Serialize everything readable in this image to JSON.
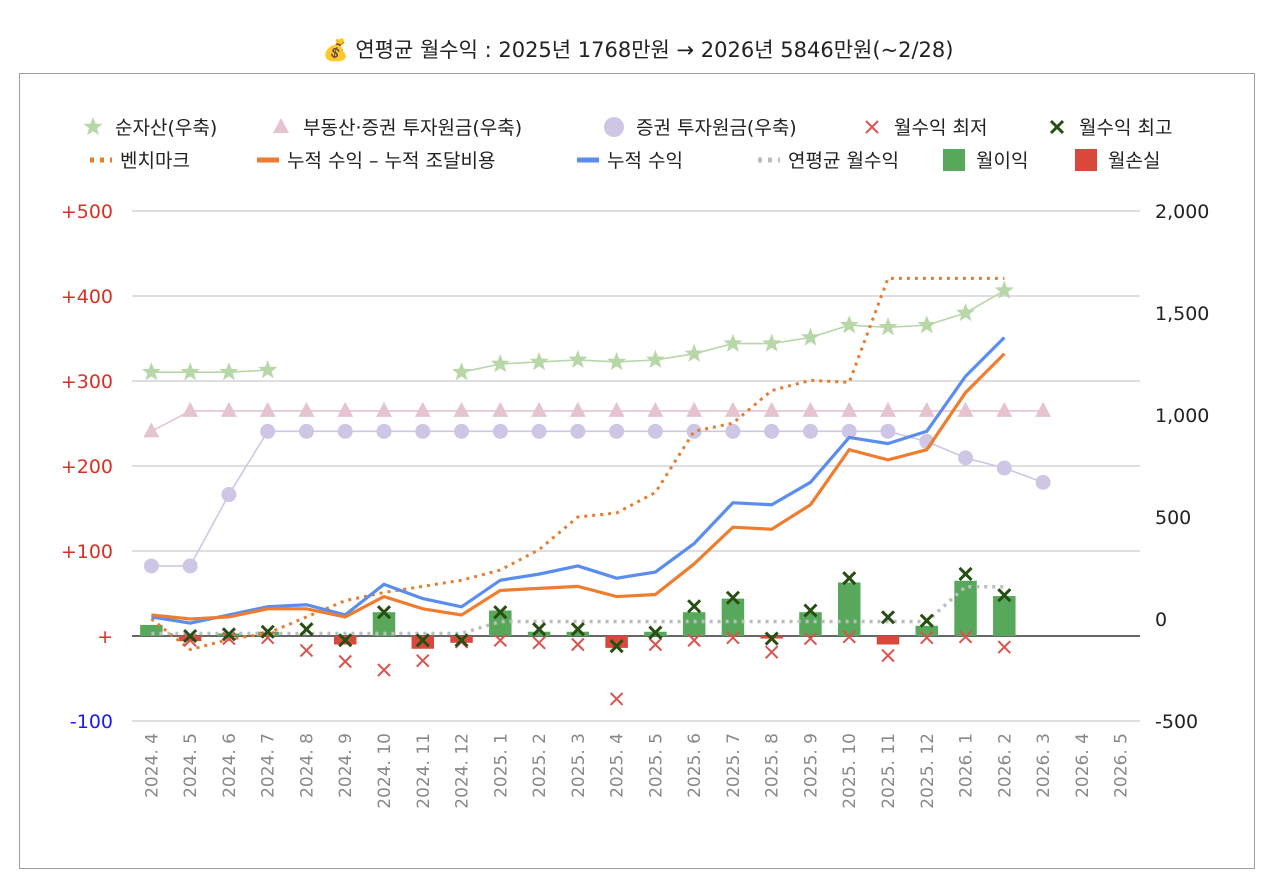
{
  "title": "💰 연평균 월수익 : 2025년 1768만원 → 2026년 5846만원(~2/28)",
  "chart_data": {
    "type": "combo",
    "categories": [
      "2024. 4",
      "2024. 5",
      "2024. 6",
      "2024. 7",
      "2024. 8",
      "2024. 9",
      "2024. 10",
      "2024. 11",
      "2024. 12",
      "2025. 1",
      "2025. 2",
      "2025. 3",
      "2025. 4",
      "2025. 5",
      "2025. 6",
      "2025. 7",
      "2025. 8",
      "2025. 9",
      "2025. 10",
      "2025. 11",
      "2025. 12",
      "2026. 1",
      "2026. 2",
      "2026. 3",
      "2026. 4",
      "2026. 5"
    ],
    "left_axis": {
      "ylim": [
        -100,
        500
      ],
      "ticks": [
        {
          "v": 500,
          "label": "+500",
          "color": "#d93025"
        },
        {
          "v": 400,
          "label": "+400",
          "color": "#d93025"
        },
        {
          "v": 300,
          "label": "+300",
          "color": "#d93025"
        },
        {
          "v": 200,
          "label": "+200",
          "color": "#d93025"
        },
        {
          "v": 100,
          "label": "+100",
          "color": "#d93025"
        },
        {
          "v": 0,
          "label": "+",
          "color": "#d93025"
        },
        {
          "v": -100,
          "label": "-100",
          "color": "#1a1aff"
        }
      ]
    },
    "right_axis": {
      "ylim": [
        -500,
        2000
      ],
      "ticks": [
        {
          "v": 2000,
          "label": "2,000"
        },
        {
          "v": 1500,
          "label": "1,500"
        },
        {
          "v": 1000,
          "label": "1,000"
        },
        {
          "v": 500,
          "label": "500"
        },
        {
          "v": 0,
          "label": "0"
        },
        {
          "v": -500,
          "label": "-500"
        }
      ]
    },
    "legend": [
      {
        "name": "순자산(우축)",
        "symbol": "star",
        "color": "#b7d7a8"
      },
      {
        "name": "부동산·증권 투자원금(우축)",
        "symbol": "triangle",
        "color": "#e6c3d0"
      },
      {
        "name": "증권 투자원금(우축)",
        "symbol": "circle",
        "color": "#cfc6e6"
      },
      {
        "name": "월수익 최저",
        "symbol": "x",
        "color": "#d9534f"
      },
      {
        "name": "월수익 최고",
        "symbol": "x",
        "color": "#274e13"
      },
      {
        "name": "벤치마크",
        "symbol": "dotted",
        "color": "#e67c30"
      },
      {
        "name": "누적 수익 – 누적 조달비용",
        "symbol": "line",
        "color": "#ef7d2f"
      },
      {
        "name": "누적 수익",
        "symbol": "line",
        "color": "#5b8def"
      },
      {
        "name": "연평균 월수익",
        "symbol": "dotted",
        "color": "#bdbdbd"
      },
      {
        "name": "월이익",
        "symbol": "box",
        "color": "#57a85a"
      },
      {
        "name": "월손실",
        "symbol": "box",
        "color": "#d9483b"
      }
    ],
    "series": [
      {
        "name": "월이익",
        "axis": "left",
        "type": "bar",
        "color": "#57a85a",
        "values": [
          13,
          0,
          3,
          5,
          0,
          0,
          28,
          0,
          0,
          30,
          5,
          5,
          0,
          5,
          28,
          44,
          0,
          28,
          63,
          0,
          12,
          65,
          47,
          null,
          null,
          null
        ]
      },
      {
        "name": "월손실",
        "axis": "left",
        "type": "bar",
        "color": "#d9483b",
        "values": [
          0,
          -6,
          0,
          0,
          0,
          -10,
          0,
          -15,
          -8,
          0,
          0,
          0,
          -14,
          0,
          0,
          0,
          -3,
          0,
          0,
          -10,
          0,
          0,
          0,
          null,
          null,
          null
        ]
      },
      {
        "name": "월수익 최저",
        "axis": "left",
        "type": "x",
        "color": "#d9534f",
        "values": [
          null,
          -5,
          -3,
          -2,
          -17,
          -30,
          -40,
          -29,
          -7,
          -5,
          -8,
          -10,
          -74,
          -10,
          -5,
          -2,
          -19,
          -3,
          -1,
          -23,
          -2,
          -1,
          -13,
          null,
          null,
          null
        ]
      },
      {
        "name": "월수익 최고",
        "axis": "left",
        "type": "x",
        "color": "#274e13",
        "values": [
          null,
          0,
          2,
          5,
          8,
          -5,
          28,
          -5,
          -5,
          28,
          8,
          8,
          -12,
          4,
          35,
          45,
          -3,
          30,
          68,
          22,
          18,
          73,
          48,
          null,
          null,
          null
        ]
      },
      {
        "name": "순자산(우축)",
        "axis": "right",
        "type": "star-line",
        "color": "#b7d7a8",
        "values": [
          1210,
          1210,
          1210,
          1220,
          null,
          null,
          null,
          null,
          1210,
          1250,
          1260,
          1270,
          1260,
          1270,
          1300,
          1350,
          1350,
          1380,
          1440,
          1430,
          1440,
          1500,
          1610,
          null,
          null,
          null
        ]
      },
      {
        "name": "부동산·증권 투자원금(우축)",
        "axis": "right",
        "type": "triangle-line",
        "color": "#e6c3d0",
        "values": [
          920,
          1020,
          1020,
          1020,
          1020,
          1020,
          1020,
          1020,
          1020,
          1020,
          1020,
          1020,
          1020,
          1020,
          1020,
          1020,
          1020,
          1020,
          1020,
          1020,
          1020,
          1020,
          1020,
          1020,
          null,
          null
        ]
      },
      {
        "name": "증권 투자원금(우축)",
        "axis": "right",
        "type": "circle-line",
        "color": "#cfc6e6",
        "values": [
          260,
          260,
          610,
          920,
          920,
          920,
          920,
          920,
          920,
          920,
          920,
          920,
          920,
          920,
          920,
          920,
          920,
          920,
          920,
          920,
          870,
          790,
          740,
          670,
          null,
          null
        ]
      },
      {
        "name": "벤치마크",
        "axis": "right",
        "type": "dotted",
        "color": "#e67c30",
        "values": [
          0,
          -150,
          -100,
          -70,
          10,
          90,
          130,
          160,
          190,
          240,
          340,
          500,
          520,
          620,
          920,
          960,
          1120,
          1170,
          1160,
          1670,
          1670,
          1670,
          1670,
          null,
          null,
          null
        ]
      },
      {
        "name": "누적 수익",
        "axis": "right",
        "type": "line",
        "color": "#5b8def",
        "values": [
          10,
          -20,
          20,
          60,
          70,
          20,
          170,
          100,
          60,
          190,
          220,
          260,
          200,
          230,
          370,
          570,
          560,
          670,
          890,
          860,
          920,
          1190,
          1380,
          null,
          null,
          null
        ]
      },
      {
        "name": "누적 수익 – 누적 조달비용",
        "axis": "right",
        "type": "line",
        "color": "#ef7d2f",
        "values": [
          20,
          0,
          10,
          50,
          50,
          10,
          110,
          50,
          20,
          140,
          150,
          160,
          110,
          120,
          270,
          450,
          440,
          560,
          830,
          780,
          830,
          1110,
          1300,
          null,
          null,
          null
        ]
      },
      {
        "name": "연평균 월수익",
        "axis": "left",
        "type": "dotted",
        "color": "#bdbdbd",
        "values": [
          3,
          3,
          3,
          3,
          3,
          3,
          3,
          3,
          3,
          17,
          17,
          17,
          17,
          17,
          17,
          17,
          17,
          17,
          17,
          17,
          17,
          58,
          58,
          null,
          null,
          null
        ]
      }
    ],
    "grid": true
  }
}
